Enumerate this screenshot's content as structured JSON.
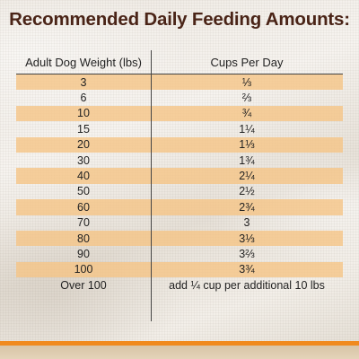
{
  "title": "Recommended Daily Feeding Amounts:",
  "table": {
    "headers": [
      "Adult Dog Weight (lbs)",
      "Cups Per Day"
    ],
    "rows": [
      [
        "3",
        "⅓"
      ],
      [
        "6",
        "⅔"
      ],
      [
        "10",
        "¾"
      ],
      [
        "15",
        "1¼"
      ],
      [
        "20",
        "1⅓"
      ],
      [
        "30",
        "1¾"
      ],
      [
        "40",
        "2¼"
      ],
      [
        "50",
        "2½"
      ],
      [
        "60",
        "2¾"
      ],
      [
        "70",
        "3"
      ],
      [
        "80",
        "3⅓"
      ],
      [
        "90",
        "3⅔"
      ],
      [
        "100",
        "3¾"
      ],
      [
        "Over 100",
        "add ¼ cup per additional 10 lbs"
      ]
    ]
  },
  "colors": {
    "title": "#4a2417",
    "row_highlight": "#f5c486",
    "accent_bar": "#f08a1e"
  }
}
